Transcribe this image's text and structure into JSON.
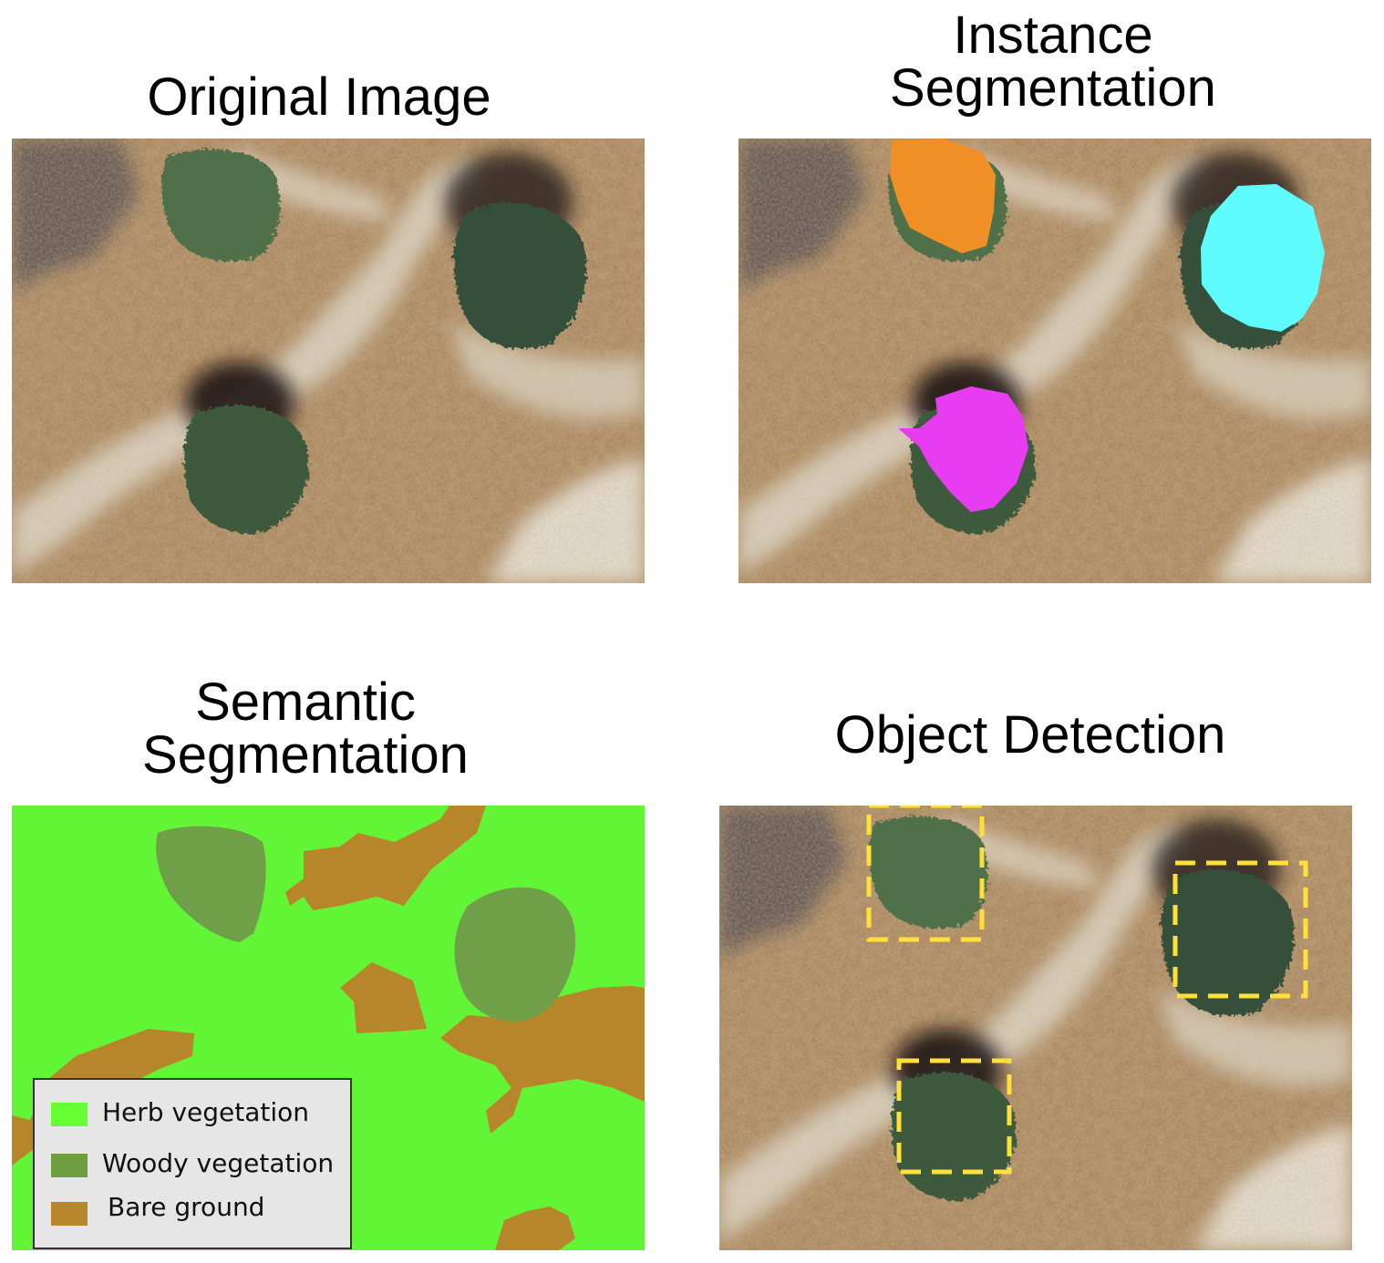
{
  "panels": {
    "original": {
      "title": "Original Image"
    },
    "instance": {
      "title": "Instance\nSegmentation"
    },
    "semantic": {
      "title": "Semantic\nSegmentation"
    },
    "detection": {
      "title": "Object Detection"
    }
  },
  "legend": {
    "items": [
      {
        "label": "Herb vegetation",
        "color": "#66ff33"
      },
      {
        "label": "Woody vegetation",
        "color": "#6e9e40"
      },
      {
        "label": "Bare ground",
        "color": "#b8862a"
      }
    ]
  },
  "colors": {
    "herb": "#62f535",
    "woody": "#6f9f48",
    "bare": "#b8862a",
    "instance_1": "#f08f25",
    "instance_2": "#5efcff",
    "instance_3": "#e83cf2",
    "detection_box": "#ffe03a"
  }
}
